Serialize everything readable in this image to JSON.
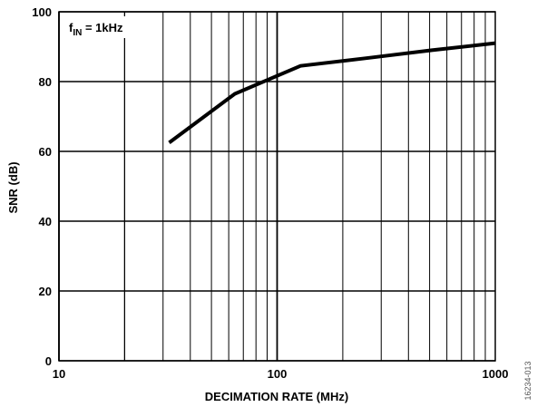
{
  "chart_data": {
    "type": "line",
    "title": "",
    "xlabel": "DECIMATION RATE (MHz)",
    "ylabel": "SNR (dB)",
    "x_scale": "log",
    "xlim": [
      10,
      1000
    ],
    "ylim": [
      0,
      100
    ],
    "x_ticks": [
      10,
      100,
      1000
    ],
    "x_tick_labels": [
      "10",
      "100",
      "1000"
    ],
    "y_ticks": [
      0,
      20,
      40,
      60,
      80,
      100
    ],
    "y_tick_labels": [
      "0",
      "20",
      "40",
      "60",
      "80",
      "100"
    ],
    "grid": true,
    "legend": "none",
    "series": [
      {
        "x": [
          32,
          64,
          128,
          256,
          512,
          1000
        ],
        "y": [
          62.5,
          76.5,
          84.5,
          86.7,
          89.0,
          91.0
        ]
      }
    ],
    "annotations": [
      {
        "text_main": "f",
        "text_sub": "IN",
        "text_rest": " = 1kHz"
      }
    ],
    "figure_id": "16234-013"
  }
}
